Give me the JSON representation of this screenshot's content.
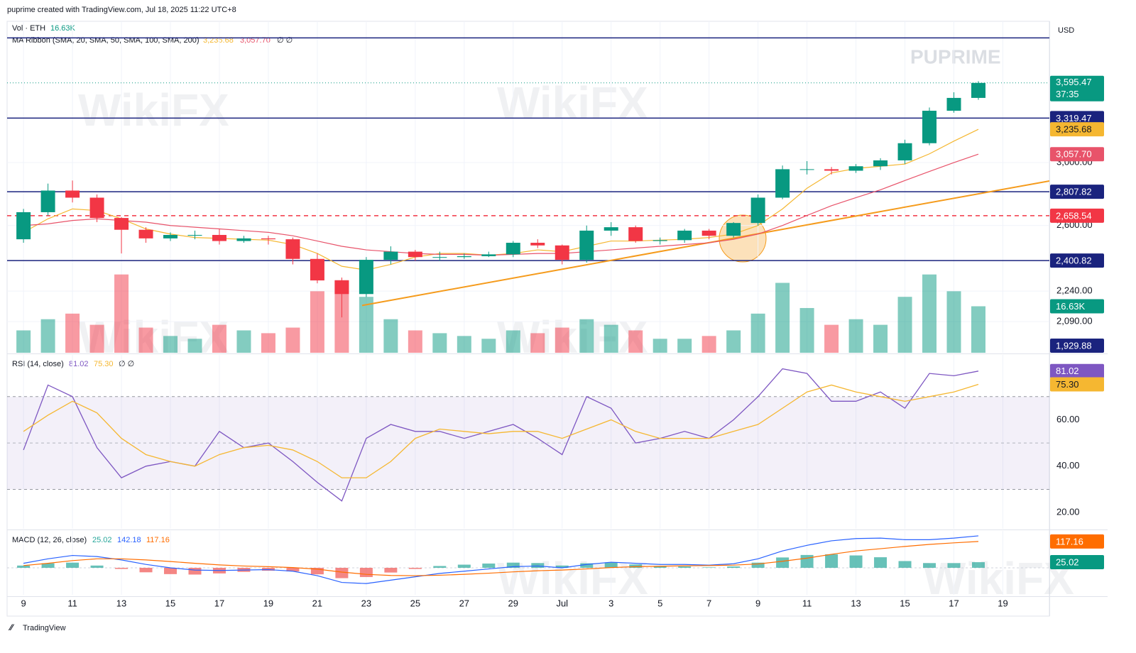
{
  "header": "puprime created with TradingView.com, Jul 18, 2025 11:22 UTC+8",
  "footer": "TradingView",
  "watermarks": {
    "brand": "PUPRIME",
    "mark": "WikiFX"
  },
  "chart_data": [
    {
      "type": "candlestick",
      "title": "Vol · ETH",
      "log": true,
      "currency": "USD",
      "x": [
        0,
        1,
        2,
        3,
        4,
        5,
        6,
        7,
        8,
        9,
        10,
        11,
        12,
        13,
        14,
        15,
        16,
        17,
        18,
        19,
        20,
        21,
        22,
        23,
        24,
        25,
        26,
        27,
        28,
        29,
        30,
        31,
        32,
        33,
        34,
        35,
        36,
        37,
        38,
        39
      ],
      "xlim": [
        -0.67,
        41.9
      ],
      "xticks": [
        {
          "value": 0,
          "label": "9"
        },
        {
          "value": 2,
          "label": "11"
        },
        {
          "value": 4,
          "label": "13"
        },
        {
          "value": 6,
          "label": "15"
        },
        {
          "value": 8,
          "label": "17"
        },
        {
          "value": 10,
          "label": "19"
        },
        {
          "value": 12,
          "label": "21"
        },
        {
          "value": 14,
          "label": "23"
        },
        {
          "value": 16,
          "label": "25"
        },
        {
          "value": 18,
          "label": "27"
        },
        {
          "value": 20,
          "label": "29"
        },
        {
          "value": 22,
          "label": "Jul"
        },
        {
          "value": 24,
          "label": "3"
        },
        {
          "value": 26,
          "label": "5"
        },
        {
          "value": 28,
          "label": "7"
        },
        {
          "value": 30,
          "label": "9"
        },
        {
          "value": 32,
          "label": "11"
        },
        {
          "value": 34,
          "label": "13"
        },
        {
          "value": 36,
          "label": "15"
        },
        {
          "value": 38,
          "label": "17"
        },
        {
          "value": 40,
          "label": "19"
        }
      ],
      "ylim": [
        1947,
        4136
      ],
      "yticks": [
        {
          "value": 2090,
          "label": "2,090.00"
        },
        {
          "value": 2240,
          "label": "2,240.00"
        },
        {
          "value": 2600,
          "label": "2,600.00"
        },
        {
          "value": 3000,
          "label": "3,000.00"
        }
      ],
      "open": [
        2520,
        2680,
        2815,
        2770,
        2645,
        2575,
        2525,
        2545,
        2545,
        2510,
        2525,
        2520,
        2410,
        2295,
        2225,
        2405,
        2450,
        2420,
        2420,
        2425,
        2435,
        2500,
        2485,
        2405,
        2570,
        2590,
        2510,
        2515,
        2570,
        2540,
        2615,
        2770,
        2955,
        2955,
        2945,
        2975,
        3015,
        3135,
        3375,
        3475
      ],
      "high": [
        2700,
        2860,
        2880,
        2790,
        2650,
        2590,
        2560,
        2570,
        2580,
        2540,
        2540,
        2530,
        2440,
        2310,
        2420,
        2480,
        2460,
        2450,
        2440,
        2450,
        2510,
        2520,
        2490,
        2600,
        2620,
        2600,
        2530,
        2580,
        2580,
        2620,
        2790,
        2980,
        3010,
        2970,
        2990,
        3030,
        3160,
        3400,
        3520,
        3610
      ],
      "low": [
        2500,
        2660,
        2740,
        2620,
        2440,
        2500,
        2510,
        2520,
        2490,
        2500,
        2490,
        2380,
        2280,
        2110,
        2210,
        2380,
        2400,
        2400,
        2410,
        2420,
        2420,
        2470,
        2380,
        2390,
        2540,
        2500,
        2490,
        2500,
        2520,
        2530,
        2600,
        2760,
        2920,
        2920,
        2930,
        2950,
        2990,
        3120,
        3360,
        3460
      ],
      "close": [
        2680,
        2815,
        2770,
        2645,
        2575,
        2525,
        2545,
        2545,
        2510,
        2525,
        2520,
        2410,
        2295,
        2225,
        2405,
        2450,
        2420,
        2420,
        2425,
        2435,
        2500,
        2485,
        2405,
        2570,
        2590,
        2510,
        2515,
        2570,
        2540,
        2615,
        2770,
        2955,
        2955,
        2945,
        2975,
        3015,
        3135,
        3375,
        3475,
        3595.47
      ],
      "up_color": "#089981",
      "down_color": "#f23645",
      "volume": {
        "values": [
          8,
          12,
          14,
          10,
          28,
          9,
          6,
          5,
          10,
          8,
          7,
          9,
          22,
          26,
          20,
          12,
          8,
          7,
          6,
          5,
          8,
          7,
          9,
          12,
          10,
          8,
          5,
          5,
          6,
          8,
          14,
          25,
          16,
          10,
          12,
          10,
          20,
          28,
          22,
          16.63
        ],
        "vlim": [
          0,
          33
        ],
        "label": "16.63K",
        "up_color": "rgba(8,153,129,0.5)",
        "down_color": "rgba(242,54,69,0.5)",
        "badge_color": "#089981"
      },
      "ma_title": "MA Ribbon (SMA, 20, SMA, 50, SMA, 100, SMA, 200)",
      "ma_hidden": "∅ ∅",
      "ma": [
        {
          "color": "#f5b731",
          "text": "#131722",
          "label": "3,235.68",
          "values": [
            2560,
            2640,
            2700,
            2690,
            2640,
            2580,
            2550,
            2530,
            2525,
            2520,
            2515,
            2490,
            2440,
            2370,
            2350,
            2380,
            2420,
            2440,
            2440,
            2430,
            2440,
            2460,
            2450,
            2480,
            2510,
            2510,
            2515,
            2520,
            2530,
            2550,
            2600,
            2700,
            2830,
            2930,
            2960,
            2975,
            2990,
            3060,
            3150,
            3235.68
          ]
        },
        {
          "color": "#e8536a",
          "text": "#ffffff",
          "label": "3,057.70",
          "values": [
            2600,
            2610,
            2630,
            2640,
            2630,
            2620,
            2600,
            2590,
            2580,
            2570,
            2560,
            2540,
            2510,
            2480,
            2460,
            2450,
            2440,
            2435,
            2435,
            2430,
            2435,
            2440,
            2440,
            2450,
            2460,
            2470,
            2480,
            2490,
            2500,
            2520,
            2550,
            2600,
            2660,
            2720,
            2770,
            2820,
            2880,
            2940,
            3000,
            3057.7
          ]
        }
      ],
      "levels": [
        {
          "value": 3983,
          "color": "#1a237e"
        },
        {
          "value": 3319.47,
          "label": "3,319.47",
          "color": "#1a237e"
        },
        {
          "value": 2807.82,
          "label": "2,807.82",
          "color": "#1a237e"
        },
        {
          "value": 2658.54,
          "label": "2,658.54",
          "color": "#f23645",
          "dashed": true
        },
        {
          "value": 2400.82,
          "label": "2,400.82",
          "color": "#1a237e"
        },
        {
          "value": 1929.88,
          "label": "1,929.88",
          "color": "#1a237e"
        }
      ],
      "last_price": {
        "value": 3595.47,
        "label": "3,595.47",
        "countdown": "37:35",
        "color": "#089981"
      },
      "trendline": {
        "x": [
          13.83,
          41.9
        ],
        "values": [
          2168,
          2877
        ],
        "color": "#f59b1c"
      }
    },
    {
      "type": "line",
      "title": "RSI (14, close)",
      "hidden": "∅ ∅",
      "ylim": [
        13,
        88
      ],
      "yticks": [
        {
          "value": 20,
          "label": "20.00"
        },
        {
          "value": 40,
          "label": "40.00"
        },
        {
          "value": 60,
          "label": "60.00"
        }
      ],
      "band": [
        30,
        70
      ],
      "midline": 50,
      "band_color": "rgba(126,87,194,0.09)",
      "series": [
        {
          "color": "#7e57c2",
          "text": "#ffffff",
          "label": "81.02",
          "values": [
            47,
            75,
            70,
            48,
            35,
            40,
            42,
            40,
            55,
            48,
            50,
            42,
            33,
            25,
            52,
            58,
            55,
            55,
            52,
            55,
            58,
            52,
            45,
            70,
            65,
            50,
            52,
            55,
            52,
            60,
            70,
            82,
            80,
            68,
            68,
            72,
            65,
            80,
            79,
            81.02
          ]
        },
        {
          "color": "#f5b731",
          "text": "#131722",
          "label": "75.30",
          "values": [
            55,
            62,
            68,
            63,
            52,
            45,
            42,
            40,
            45,
            48,
            49,
            47,
            42,
            35,
            35,
            42,
            52,
            56,
            55,
            54,
            55,
            55,
            52,
            56,
            60,
            55,
            52,
            52,
            52,
            55,
            58,
            65,
            72,
            75,
            72,
            70,
            68,
            70,
            72,
            75.3
          ]
        }
      ]
    },
    {
      "type": "macd",
      "title": "MACD (12, 26, close)",
      "ylim": [
        -120,
        164
      ],
      "histogram": {
        "label": "25.02",
        "pos_color": "#26a69a",
        "neg_color": "#ef5350",
        "badge_color": "#089981",
        "values": [
          10,
          20,
          23,
          10,
          -5,
          -20,
          -28,
          -30,
          -25,
          -18,
          -13,
          -16,
          -29,
          -46,
          -41,
          -21,
          -5,
          8,
          14,
          19,
          23,
          21,
          10,
          20,
          24,
          15,
          8,
          6,
          2,
          6,
          23,
          46,
          57,
          60,
          55,
          47,
          30,
          21,
          21,
          25.02
        ]
      },
      "series": [
        {
          "color": "#2962ff",
          "label": "142.18",
          "badge": false,
          "values": [
            20,
            40,
            55,
            50,
            35,
            15,
            0,
            -10,
            -12,
            -10,
            -8,
            -15,
            -35,
            -65,
            -70,
            -55,
            -40,
            -25,
            -15,
            -5,
            5,
            8,
            0,
            15,
            25,
            20,
            15,
            15,
            12,
            18,
            40,
            75,
            100,
            120,
            130,
            132,
            125,
            125,
            132,
            142.18
          ]
        },
        {
          "color": "#ff6d00",
          "label": "117.16",
          "badge": true,
          "values": [
            10,
            20,
            32,
            40,
            40,
            35,
            28,
            20,
            13,
            8,
            5,
            1,
            -6,
            -19,
            -29,
            -34,
            -35,
            -33,
            -29,
            -24,
            -18,
            -13,
            -10,
            -5,
            1,
            5,
            7,
            9,
            10,
            12,
            17,
            29,
            43,
            60,
            75,
            85,
            95,
            104,
            111,
            117.16
          ]
        }
      ]
    }
  ]
}
